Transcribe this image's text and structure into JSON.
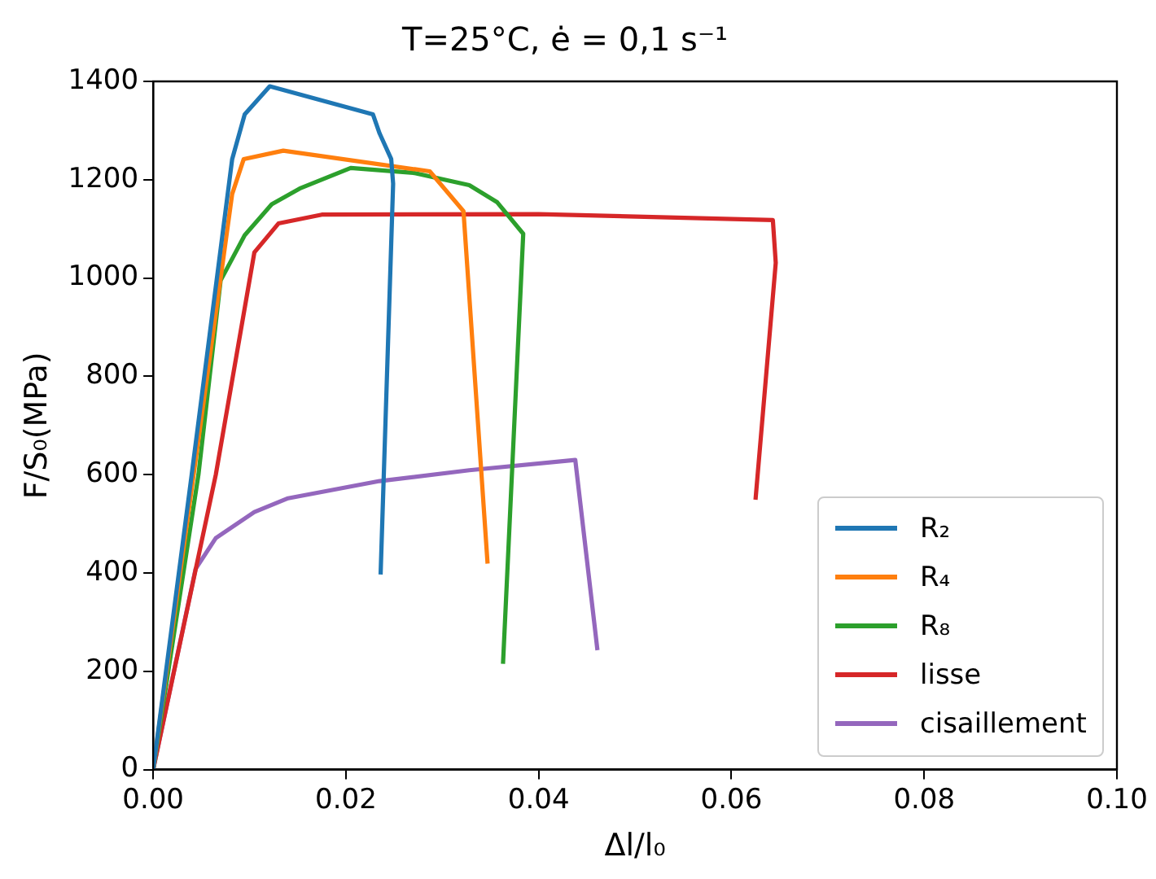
{
  "chart_data": {
    "type": "line",
    "title": "T=25°C, ė = 0,1 s⁻¹",
    "xlabel": "Δl/l₀",
    "ylabel": "F/S₀(MPa)",
    "xlim": [
      0,
      0.1
    ],
    "xticks": [
      {
        "value": 0,
        "label": "0.00"
      },
      {
        "value": 0.02,
        "label": "0.02"
      },
      {
        "value": 0.04,
        "label": "0.04"
      },
      {
        "value": 0.06,
        "label": "0.06"
      },
      {
        "value": 0.08,
        "label": "0.08"
      },
      {
        "value": 0.1,
        "label": "0.10"
      }
    ],
    "ylim": [
      0,
      1400
    ],
    "yticks": [
      0,
      200,
      400,
      600,
      800,
      1000,
      1200,
      1400
    ],
    "grid": false,
    "legend": "bottom right",
    "marker": "none",
    "line_style": "solid",
    "series": [
      {
        "name": "R₂",
        "color": "#1f77b4",
        "x": [
          0,
          0.004,
          0.0082,
          0.0095,
          0.0121,
          0.0228,
          0.0235,
          0.0247,
          0.0249,
          0.0236
        ],
        "values": [
          0,
          600,
          1242,
          1333,
          1390,
          1333,
          1294,
          1242,
          1192,
          397
        ]
      },
      {
        "name": "R₄",
        "color": "#ff7f0e",
        "x": [
          0,
          0.0042,
          0.0082,
          0.0094,
          0.0135,
          0.0287,
          0.0322,
          0.0347
        ],
        "values": [
          0,
          600,
          1171,
          1242,
          1259,
          1217,
          1136,
          419
        ]
      },
      {
        "name": "R₈",
        "color": "#2ca02c",
        "x": [
          0,
          0.0047,
          0.007,
          0.0095,
          0.0123,
          0.0152,
          0.0205,
          0.027,
          0.0328,
          0.0357,
          0.0384,
          0.0363
        ],
        "values": [
          0,
          600,
          995,
          1087,
          1150,
          1182,
          1224,
          1214,
          1189,
          1154,
          1090,
          215
        ]
      },
      {
        "name": "lisse",
        "color": "#d62728",
        "x": [
          0,
          0.0065,
          0.0105,
          0.013,
          0.0175,
          0.04,
          0.0643,
          0.0646,
          0.0625
        ],
        "values": [
          0,
          600,
          1052,
          1111,
          1129,
          1130,
          1118,
          1031,
          549
        ]
      },
      {
        "name": "cisaillement",
        "color": "#9467bd",
        "x": [
          0,
          0.0044,
          0.0065,
          0.0105,
          0.014,
          0.0235,
          0.0328,
          0.0438,
          0.0461
        ],
        "values": [
          0,
          408,
          471,
          524,
          552,
          587,
          609,
          630,
          243
        ]
      }
    ]
  }
}
